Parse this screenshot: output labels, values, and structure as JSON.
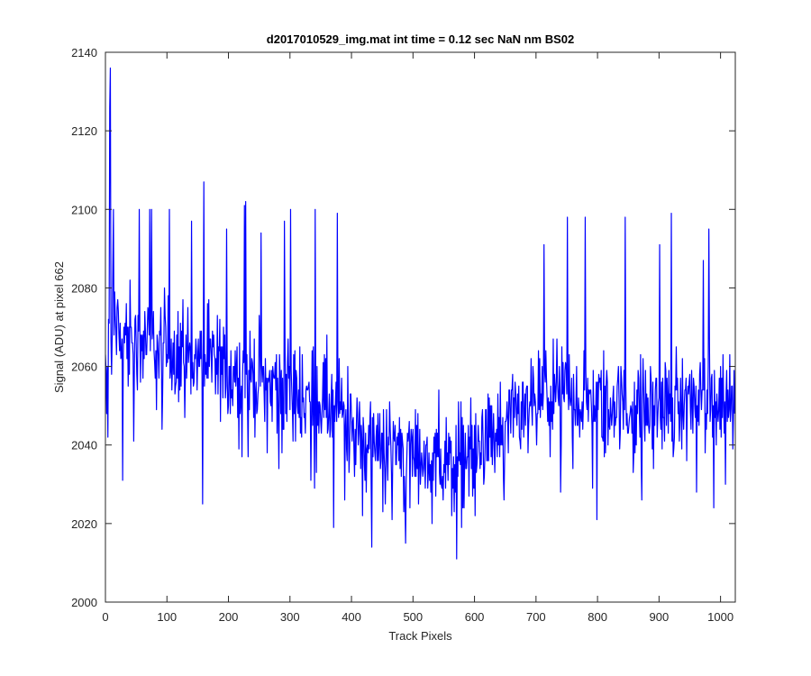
{
  "chart_data": {
    "type": "line",
    "title": "d2017010529_img.mat int time = 0.12 sec  NaN nm BS02",
    "xlabel": "Track Pixels",
    "ylabel": "Signal (ADU) at pixel 662",
    "xlim": [
      0,
      1024
    ],
    "ylim": [
      2000,
      2140
    ],
    "xticks": [
      0,
      100,
      200,
      300,
      400,
      500,
      600,
      700,
      800,
      900,
      1000
    ],
    "yticks": [
      2000,
      2020,
      2040,
      2060,
      2080,
      2100,
      2120,
      2140
    ],
    "grid": false,
    "box": true,
    "series": [
      {
        "color": "#0000ff",
        "trend": [
          [
            0,
            2062
          ],
          [
            10,
            2068
          ],
          [
            40,
            2067
          ],
          [
            80,
            2065
          ],
          [
            120,
            2063
          ],
          [
            160,
            2062
          ],
          [
            200,
            2058
          ],
          [
            240,
            2057
          ],
          [
            280,
            2055
          ],
          [
            320,
            2053
          ],
          [
            360,
            2050
          ],
          [
            400,
            2045
          ],
          [
            440,
            2041
          ],
          [
            480,
            2039
          ],
          [
            520,
            2036
          ],
          [
            560,
            2035
          ],
          [
            600,
            2038
          ],
          [
            640,
            2042
          ],
          [
            680,
            2048
          ],
          [
            720,
            2052
          ],
          [
            760,
            2053
          ],
          [
            800,
            2050
          ],
          [
            840,
            2050
          ],
          [
            880,
            2049
          ],
          [
            920,
            2050
          ],
          [
            960,
            2052
          ],
          [
            1000,
            2052
          ],
          [
            1024,
            2050
          ]
        ],
        "noise_amplitude": 11,
        "spikes": [
          [
            0,
            2063
          ],
          [
            2,
            2048
          ],
          [
            4,
            2042
          ],
          [
            6,
            2071
          ],
          [
            7,
            2126
          ],
          [
            8,
            2136
          ],
          [
            10,
            2058
          ],
          [
            12,
            2085
          ],
          [
            13,
            2100
          ],
          [
            15,
            2079
          ],
          [
            28,
            2031
          ],
          [
            46,
            2041
          ],
          [
            55,
            2100
          ],
          [
            72,
            2100
          ],
          [
            75,
            2100
          ],
          [
            92,
            2044
          ],
          [
            104,
            2100
          ],
          [
            140,
            2097
          ],
          [
            158,
            2025
          ],
          [
            160,
            2107
          ],
          [
            197,
            2095
          ],
          [
            222,
            2037
          ],
          [
            226,
            2101
          ],
          [
            228,
            2102
          ],
          [
            232,
            2037
          ],
          [
            253,
            2094
          ],
          [
            282,
            2034
          ],
          [
            291,
            2097
          ],
          [
            301,
            2100
          ],
          [
            305,
            2041
          ],
          [
            334,
            2031
          ],
          [
            340,
            2029
          ],
          [
            341,
            2100
          ],
          [
            371,
            2019
          ],
          [
            377,
            2099
          ],
          [
            389,
            2026
          ],
          [
            396,
            2033
          ],
          [
            418,
            2022
          ],
          [
            424,
            2028
          ],
          [
            433,
            2014
          ],
          [
            451,
            2023
          ],
          [
            466,
            2021
          ],
          [
            485,
            2023
          ],
          [
            488,
            2015
          ],
          [
            518,
            2041
          ],
          [
            537,
            2027
          ],
          [
            542,
            2054
          ],
          [
            571,
            2011
          ],
          [
            589,
            2037
          ],
          [
            601,
            2022
          ],
          [
            648,
            2026
          ],
          [
            680,
            2042
          ],
          [
            713,
            2091
          ],
          [
            740,
            2028
          ],
          [
            751,
            2098
          ],
          [
            760,
            2034
          ],
          [
            780,
            2098
          ],
          [
            792,
            2029
          ],
          [
            799,
            2021
          ],
          [
            826,
            2055
          ],
          [
            845,
            2098
          ],
          [
            858,
            2033
          ],
          [
            872,
            2026
          ],
          [
            901,
            2091
          ],
          [
            920,
            2099
          ],
          [
            961,
            2028
          ],
          [
            972,
            2087
          ],
          [
            981,
            2095
          ],
          [
            989,
            2024
          ],
          [
            1008,
            2030
          ],
          [
            1012,
            2054
          ],
          [
            1015,
            2063
          ],
          [
            1020,
            2039
          ],
          [
            1023,
            2048
          ]
        ]
      }
    ]
  }
}
